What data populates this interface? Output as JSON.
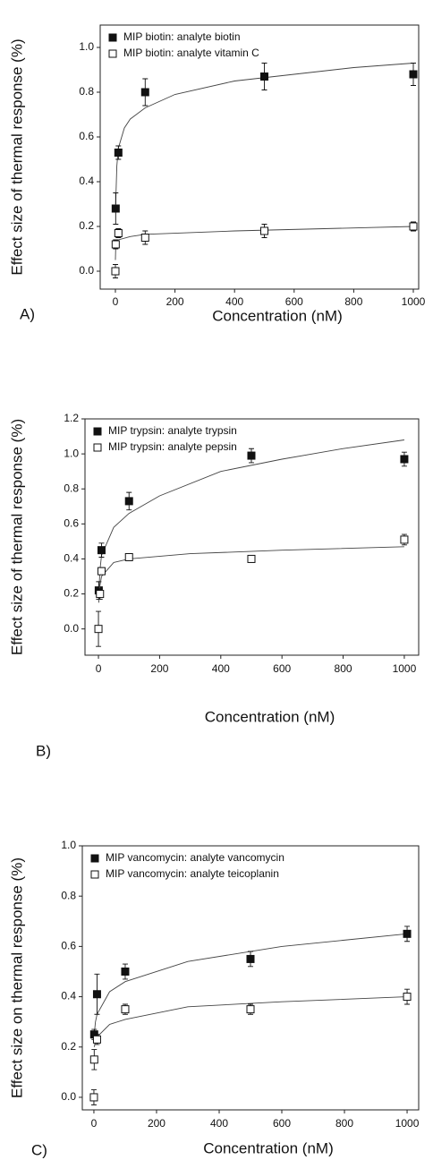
{
  "chart_data": [
    {
      "type": "scatter",
      "label": "A)",
      "x_label": "Concentration (nM)",
      "y_label": "Effect size of thermal response (%)",
      "xlim": [
        -51,
        1018
      ],
      "ylim": [
        -0.08,
        1.1
      ],
      "xticks": [
        0,
        200,
        400,
        600,
        800,
        1000
      ],
      "yticks": [
        {
          "value": 0,
          "label": "0.0"
        },
        0.2,
        0.4,
        0.6,
        0.8,
        {
          "value": 1,
          "label": "1.0"
        }
      ],
      "legend": "upper left",
      "series": [
        {
          "name": "MIP biotin: analyte biotin",
          "color": "#111111",
          "marker": "filled-square",
          "x": [
            1,
            10,
            100,
            500,
            1000
          ],
          "values": [
            0.28,
            0.53,
            0.8,
            0.87,
            0.88
          ],
          "errors": [
            0.07,
            0.03,
            0.06,
            0.06,
            0.05
          ],
          "fit_x": [
            1,
            5,
            10,
            30,
            50,
            100,
            200,
            400,
            600,
            800,
            1000
          ],
          "fit_values": [
            0.3,
            0.47,
            0.55,
            0.64,
            0.68,
            0.73,
            0.79,
            0.85,
            0.88,
            0.91,
            0.93
          ]
        },
        {
          "name": "MIP biotin: analyte vitamin C",
          "color": "#111111",
          "marker": "open-square",
          "x": [
            0,
            1,
            10,
            100,
            500,
            1000
          ],
          "values": [
            0,
            0.12,
            0.17,
            0.15,
            0.18,
            0.2
          ],
          "errors": [
            0.03,
            0.02,
            0.02,
            0.03,
            0.03,
            0.02
          ],
          "fit_x": [
            0,
            1,
            5,
            10,
            50,
            100,
            400,
            700,
            1000
          ],
          "fit_values": [
            0.05,
            0.1,
            0.13,
            0.14,
            0.155,
            0.165,
            0.18,
            0.19,
            0.2
          ]
        }
      ]
    },
    {
      "type": "scatter",
      "label": "B)",
      "x_label": "Concentration (nM)",
      "y_label": "Effect size of thermal response (%)",
      "xlim": [
        -44,
        1047
      ],
      "ylim": [
        -0.15,
        1.2
      ],
      "xticks": [
        0,
        200,
        400,
        600,
        800,
        1000
      ],
      "yticks": [
        {
          "value": 0,
          "label": "0.0"
        },
        0.2,
        0.4,
        0.6,
        0.8,
        {
          "value": 1,
          "label": "1.0"
        },
        1.2
      ],
      "legend": "upper left",
      "series": [
        {
          "name": "MIP trypsin: analyte trypsin",
          "color": "#111111",
          "marker": "filled-square",
          "x": [
            1,
            10,
            100,
            500,
            1000
          ],
          "values": [
            0.22,
            0.45,
            0.73,
            0.99,
            0.97
          ],
          "errors": [
            0.05,
            0.04,
            0.05,
            0.04,
            0.04
          ],
          "fit_x": [
            1,
            5,
            10,
            50,
            100,
            200,
            400,
            600,
            800,
            1000
          ],
          "fit_values": [
            0.2,
            0.34,
            0.42,
            0.58,
            0.66,
            0.76,
            0.9,
            0.97,
            1.03,
            1.08
          ]
        },
        {
          "name": "MIP trypsin: analyte pepsin",
          "color": "#111111",
          "marker": "open-square",
          "x": [
            0,
            5,
            10,
            100,
            500,
            1000
          ],
          "values": [
            0,
            0.2,
            0.33,
            0.41,
            0.4,
            0.51
          ],
          "errors": [
            0.1,
            0.03,
            0.02,
            0.02,
            0.02,
            0.03
          ],
          "fit_x": [
            1,
            5,
            10,
            50,
            100,
            300,
            600,
            1000
          ],
          "fit_values": [
            0.15,
            0.25,
            0.3,
            0.38,
            0.4,
            0.43,
            0.45,
            0.47
          ]
        }
      ]
    },
    {
      "type": "scatter",
      "label": "C)",
      "x_label": "Concentration (nM)",
      "y_label": "Effect size on thermal response (%)",
      "xlim": [
        -37,
        1037
      ],
      "ylim": [
        -0.05,
        1.0
      ],
      "xticks": [
        0,
        200,
        400,
        600,
        800,
        1000
      ],
      "yticks": [
        {
          "value": 0,
          "label": "0.0"
        },
        0.2,
        0.4,
        0.6,
        0.8,
        {
          "value": 1,
          "label": "1.0"
        }
      ],
      "legend": "upper left",
      "series": [
        {
          "name": "MIP vancomycin: analyte vancomycin",
          "color": "#111111",
          "marker": "filled-square",
          "x": [
            1,
            10,
            100,
            500,
            1000
          ],
          "values": [
            0.25,
            0.41,
            0.5,
            0.55,
            0.65
          ],
          "errors": [
            0.02,
            0.08,
            0.03,
            0.03,
            0.03
          ],
          "fit_x": [
            1,
            5,
            10,
            50,
            100,
            300,
            600,
            1000
          ],
          "fit_values": [
            0.25,
            0.3,
            0.33,
            0.42,
            0.46,
            0.54,
            0.6,
            0.65
          ]
        },
        {
          "name": "MIP vancomycin: analyte teicoplanin",
          "color": "#111111",
          "marker": "open-square",
          "x": [
            0,
            1,
            10,
            100,
            500,
            1000
          ],
          "values": [
            0,
            0.15,
            0.23,
            0.35,
            0.35,
            0.4
          ],
          "errors": [
            0.03,
            0.04,
            0.02,
            0.02,
            0.02,
            0.03
          ],
          "fit_x": [
            1,
            5,
            10,
            50,
            100,
            300,
            600,
            1000
          ],
          "fit_values": [
            0.2,
            0.22,
            0.24,
            0.29,
            0.31,
            0.36,
            0.38,
            0.4
          ]
        }
      ]
    }
  ]
}
